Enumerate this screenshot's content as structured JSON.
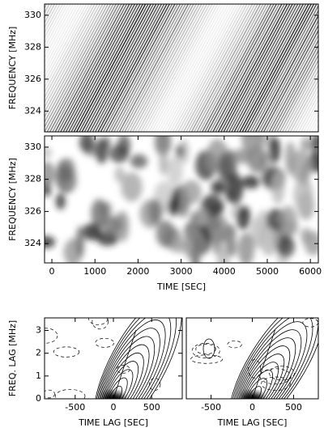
{
  "chart_data": [
    {
      "type": "heatmap",
      "ylabel": "FREQUENCY [MHz]",
      "xlim": [
        -170,
        6185
      ],
      "ylim": [
        322.7,
        330.7
      ],
      "yticks": [
        324,
        326,
        328,
        330
      ]
    },
    {
      "type": "heatmap",
      "ylabel": "FREQUENCY [MHz]",
      "xlabel": "TIME [SEC]",
      "xlim": [
        -170,
        6185
      ],
      "ylim": [
        322.8,
        330.7
      ],
      "xticks": [
        0,
        1000,
        2000,
        3000,
        4000,
        5000,
        6000
      ],
      "yticks": [
        324,
        326,
        328,
        330
      ]
    },
    {
      "type": "contour",
      "ylabel": "FREQ. LAG [MHz]",
      "xlabel": "TIME LAG [SEC]",
      "xlim": [
        -900,
        900
      ],
      "ylim": [
        0,
        3.55
      ],
      "xticks": [
        -500,
        0,
        500
      ],
      "yticks": [
        0,
        1,
        2,
        3
      ]
    },
    {
      "type": "contour",
      "xlabel": "TIME LAG [SEC]",
      "xlim": [
        -800,
        800
      ],
      "ylim": [
        0,
        3.55
      ],
      "xticks": [
        -500,
        0,
        500
      ]
    }
  ]
}
